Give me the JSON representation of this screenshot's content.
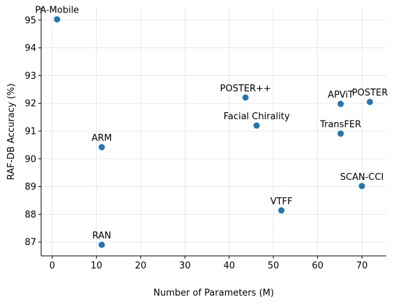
{
  "chart_data": {
    "type": "scatter",
    "title": "",
    "xlabel": "Number of Parameters (M)",
    "ylabel": "RAF-DB Accuracy (%)",
    "xlim": [
      -2.5,
      75.5
    ],
    "ylim": [
      86.5,
      95.45
    ],
    "xticks": [
      0,
      10,
      20,
      30,
      40,
      50,
      60,
      70
    ],
    "yticks": [
      87,
      88,
      89,
      90,
      91,
      92,
      93,
      94,
      95
    ],
    "grid": true,
    "color": "#1f77b4",
    "points": [
      {
        "label": "PA-Mobile",
        "x": 1.1,
        "y": 95.03
      },
      {
        "label": "POSTER++",
        "x": 43.7,
        "y": 92.21
      },
      {
        "label": "APViT",
        "x": 65.2,
        "y": 91.98
      },
      {
        "label": "POSTER",
        "x": 71.8,
        "y": 92.05
      },
      {
        "label": "Facial Chirality",
        "x": 46.2,
        "y": 91.2
      },
      {
        "label": "TransFER",
        "x": 65.2,
        "y": 90.91
      },
      {
        "label": "ARM",
        "x": 11.2,
        "y": 90.42
      },
      {
        "label": "SCAN-CCI",
        "x": 70.0,
        "y": 89.02
      },
      {
        "label": "VTFF",
        "x": 51.8,
        "y": 88.14
      },
      {
        "label": "RAN",
        "x": 11.2,
        "y": 86.9
      }
    ]
  }
}
